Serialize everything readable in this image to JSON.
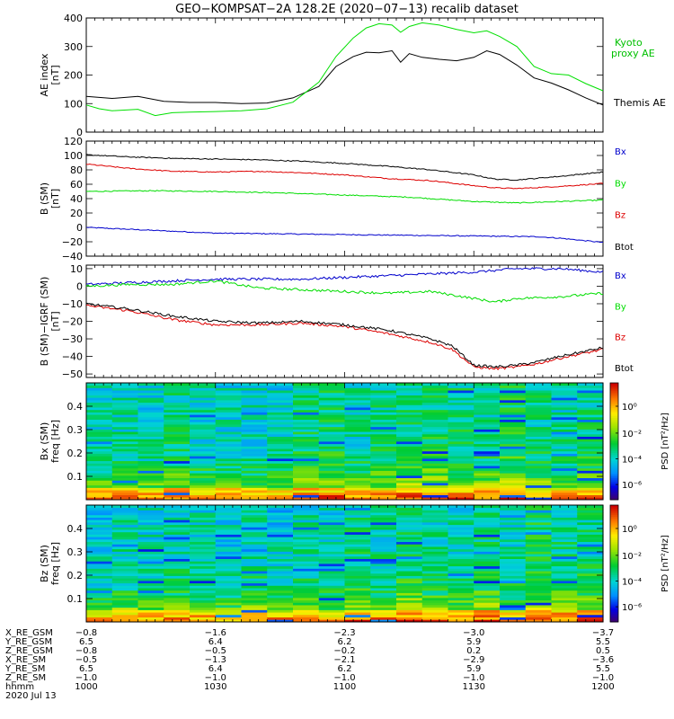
{
  "title": "GEO−KOMPSAT−2A 128.2E (2020−07−13) recalib dataset",
  "chart_data": [
    {
      "type": "line",
      "panel": "ae",
      "ylabel": [
        "AE index",
        "[nT]"
      ],
      "ylim": [
        0,
        400
      ],
      "yticks": [
        0,
        100,
        200,
        300,
        400
      ],
      "series": [
        {
          "name": "Themis AE",
          "color": "#000000",
          "x": [
            "10:00",
            "10:06",
            "10:12",
            "10:18",
            "10:24",
            "10:30",
            "10:36",
            "10:42",
            "10:48",
            "10:54",
            "10:58",
            "11:02",
            "11:05",
            "11:08",
            "11:11",
            "11:13",
            "11:15",
            "11:18",
            "11:22",
            "11:26",
            "11:30",
            "11:33",
            "11:36",
            "11:40",
            "11:44",
            "11:48",
            "11:52",
            "11:56",
            "12:00"
          ],
          "y": [
            125,
            118,
            125,
            108,
            104,
            104,
            100,
            102,
            120,
            160,
            230,
            265,
            280,
            278,
            285,
            245,
            275,
            262,
            255,
            250,
            262,
            285,
            272,
            235,
            190,
            172,
            148,
            120,
            95
          ]
        },
        {
          "name": "Kyoto proxy AE",
          "color": "#00e000",
          "x": [
            "10:00",
            "10:03",
            "10:06",
            "10:12",
            "10:16",
            "10:20",
            "10:24",
            "10:30",
            "10:36",
            "10:42",
            "10:48",
            "10:54",
            "10:58",
            "11:02",
            "11:05",
            "11:08",
            "11:11",
            "11:13",
            "11:15",
            "11:18",
            "11:22",
            "11:26",
            "11:30",
            "11:33",
            "11:36",
            "11:40",
            "11:44",
            "11:48",
            "11:52",
            "11:56",
            "12:00"
          ],
          "y": [
            95,
            82,
            75,
            80,
            58,
            68,
            70,
            72,
            75,
            82,
            105,
            175,
            265,
            330,
            365,
            380,
            375,
            350,
            370,
            383,
            375,
            360,
            348,
            355,
            335,
            300,
            230,
            205,
            200,
            170,
            145
          ]
        }
      ]
    },
    {
      "type": "line",
      "panel": "bsm",
      "ylabel": [
        "B (SM)",
        "[nT]"
      ],
      "ylim": [
        -40,
        120
      ],
      "yticks": [
        -40,
        -20,
        0,
        20,
        40,
        60,
        80,
        100,
        120
      ],
      "series": [
        {
          "name": "Bx",
          "color": "#0000cc",
          "x": [
            "10:00",
            "10:15",
            "10:30",
            "10:45",
            "11:00",
            "11:15",
            "11:30",
            "11:45",
            "11:50",
            "11:55",
            "12:00"
          ],
          "y": [
            0,
            -4,
            -8,
            -9,
            -10,
            -11,
            -12,
            -13,
            -15,
            -18,
            -21
          ]
        },
        {
          "name": "By",
          "color": "#00dd00",
          "x": [
            "10:00",
            "10:15",
            "10:30",
            "10:45",
            "11:00",
            "11:15",
            "11:20",
            "11:30",
            "11:40",
            "11:50",
            "12:00"
          ],
          "y": [
            50,
            51,
            50,
            48,
            45,
            42,
            40,
            36,
            34,
            36,
            38
          ]
        },
        {
          "name": "Bz",
          "color": "#dd0000",
          "x": [
            "10:00",
            "10:10",
            "10:20",
            "10:30",
            "10:40",
            "10:50",
            "11:00",
            "11:10",
            "11:20",
            "11:30",
            "11:35",
            "11:40",
            "11:50",
            "12:00"
          ],
          "y": [
            88,
            82,
            78,
            77,
            78,
            76,
            73,
            68,
            65,
            58,
            55,
            54,
            57,
            61
          ]
        },
        {
          "name": "Btot",
          "color": "#000000",
          "x": [
            "10:00",
            "10:10",
            "10:20",
            "10:30",
            "10:40",
            "10:50",
            "11:00",
            "11:10",
            "11:20",
            "11:30",
            "11:35",
            "11:40",
            "11:50",
            "12:00"
          ],
          "y": [
            101,
            98,
            96,
            95,
            94,
            92,
            89,
            85,
            80,
            73,
            67,
            66,
            71,
            77
          ]
        }
      ]
    },
    {
      "type": "line",
      "panel": "bdiff",
      "ylabel": [
        "B (SM)−IGRF (SM)",
        "[nT]"
      ],
      "ylim": [
        -52,
        12
      ],
      "yticks": [
        -50,
        -40,
        -30,
        -20,
        -10,
        0,
        10
      ],
      "series": [
        {
          "name": "Bx",
          "color": "#0000cc",
          "x": [
            "10:00",
            "10:10",
            "10:20",
            "10:30",
            "10:40",
            "10:50",
            "11:00",
            "11:10",
            "11:20",
            "11:30",
            "11:40",
            "11:50",
            "12:00"
          ],
          "y": [
            1,
            2,
            3,
            4,
            4,
            4,
            5,
            6,
            7,
            8,
            10,
            10,
            8
          ]
        },
        {
          "name": "By",
          "color": "#00dd00",
          "x": [
            "10:00",
            "10:10",
            "10:20",
            "10:30",
            "10:40",
            "10:50",
            "11:00",
            "11:10",
            "11:20",
            "11:30",
            "11:35",
            "11:40",
            "11:50",
            "12:00"
          ],
          "y": [
            0,
            1,
            1,
            3,
            -1,
            -2,
            -3,
            -4,
            -3,
            -7,
            -9,
            -7,
            -6,
            -4
          ]
        },
        {
          "name": "Bz",
          "color": "#dd0000",
          "x": [
            "10:00",
            "10:10",
            "10:20",
            "10:30",
            "10:40",
            "10:50",
            "11:00",
            "11:10",
            "11:20",
            "11:25",
            "11:30",
            "11:35",
            "11:40",
            "11:45",
            "11:50",
            "12:00"
          ],
          "y": [
            -11,
            -14,
            -19,
            -22,
            -22,
            -21,
            -23,
            -27,
            -32,
            -36,
            -46,
            -47,
            -46,
            -44,
            -41,
            -36
          ]
        },
        {
          "name": "Btot",
          "color": "#000000",
          "x": [
            "10:00",
            "10:10",
            "10:20",
            "10:30",
            "10:40",
            "10:50",
            "11:00",
            "11:10",
            "11:20",
            "11:25",
            "11:30",
            "11:35",
            "11:40",
            "11:45",
            "11:50",
            "12:00"
          ],
          "y": [
            -10,
            -13,
            -17,
            -20,
            -21,
            -20,
            -22,
            -25,
            -30,
            -34,
            -45,
            -46,
            -45,
            -43,
            -40,
            -35
          ]
        }
      ]
    },
    {
      "type": "heatmap",
      "panel": "specx",
      "ylabel": [
        "Bx (SM)",
        "freq  [Hz]"
      ],
      "ylim": [
        0,
        0.5
      ],
      "yticks": [
        0.1,
        0.2,
        0.3,
        0.4
      ],
      "colorbar_label": "PSD [nT²/Hz]",
      "colorbar_ticks": [
        "10⁰",
        "10⁻²",
        "10⁻⁴",
        "10⁻⁶"
      ]
    },
    {
      "type": "heatmap",
      "panel": "specz",
      "ylabel": [
        "Bz (SM)",
        "freq  [Hz]"
      ],
      "ylim": [
        0,
        0.5
      ],
      "yticks": [
        0.1,
        0.2,
        0.3,
        0.4
      ],
      "colorbar_label": "PSD [nT²/Hz]",
      "colorbar_ticks": [
        "10⁰",
        "10⁻²",
        "10⁻⁴",
        "10⁻⁶"
      ]
    }
  ],
  "ephemeris": {
    "labels": [
      "X_RE_GSM",
      "Y_RE_GSM",
      "Z_RE_GSM",
      "X_RE_SM",
      "Y_RE_SM",
      "Z_RE_SM",
      "hhmm",
      "2020 Jul 13"
    ],
    "columns": [
      [
        "−0.8",
        "6.5",
        "−0.8",
        "−0.5",
        "6.5",
        "−1.0",
        "1000"
      ],
      [
        "−1.6",
        "6.4",
        "−0.5",
        "−1.3",
        "6.4",
        "−1.0",
        "1030"
      ],
      [
        "−2.3",
        "6.2",
        "−0.2",
        "−2.1",
        "6.2",
        "−1.0",
        "1100"
      ],
      [
        "−3.0",
        "5.9",
        "0.2",
        "−2.9",
        "5.9",
        "−1.0",
        "1130"
      ],
      [
        "−3.7",
        "5.5",
        "0.5",
        "−3.6",
        "5.5",
        "−1.0",
        "1200"
      ]
    ]
  }
}
